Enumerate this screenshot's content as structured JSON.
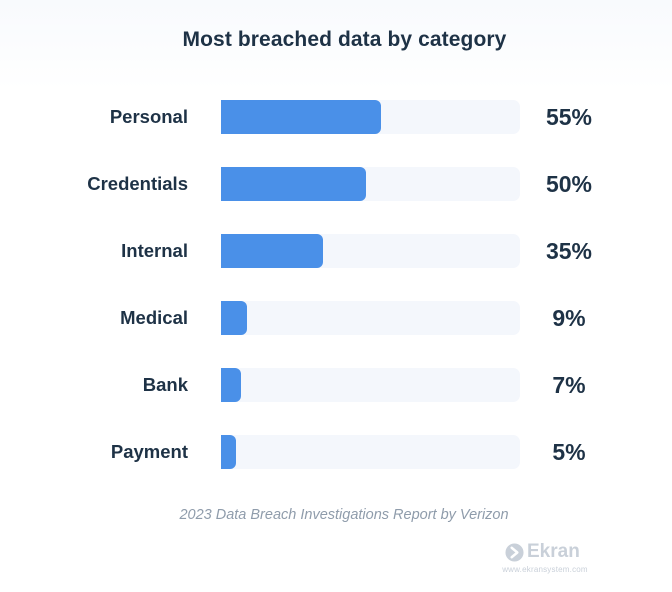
{
  "chart_data": {
    "type": "bar",
    "orientation": "horizontal",
    "title": "Most breached data by category",
    "categories": [
      "Personal",
      "Credentials",
      "Internal",
      "Medical",
      "Bank",
      "Payment"
    ],
    "values": [
      55,
      50,
      35,
      9,
      7,
      5
    ],
    "value_labels": [
      "55%",
      "50%",
      "35%",
      "9%",
      "7%",
      "5%"
    ],
    "xlim": [
      0,
      100
    ],
    "grid": false,
    "legend": "none",
    "bar_color": "#4a90e8",
    "track_color": "#f4f7fc"
  },
  "source_note": "2023 Data Breach Investigations Report by Verizon",
  "brand": {
    "name": "Ekran",
    "url": "www.ekransystem.com",
    "icon": "ekran-logo-icon"
  },
  "colors": {
    "text": "#1e3246",
    "muted": "#8f9cab",
    "logo": "#c9d0d9"
  }
}
